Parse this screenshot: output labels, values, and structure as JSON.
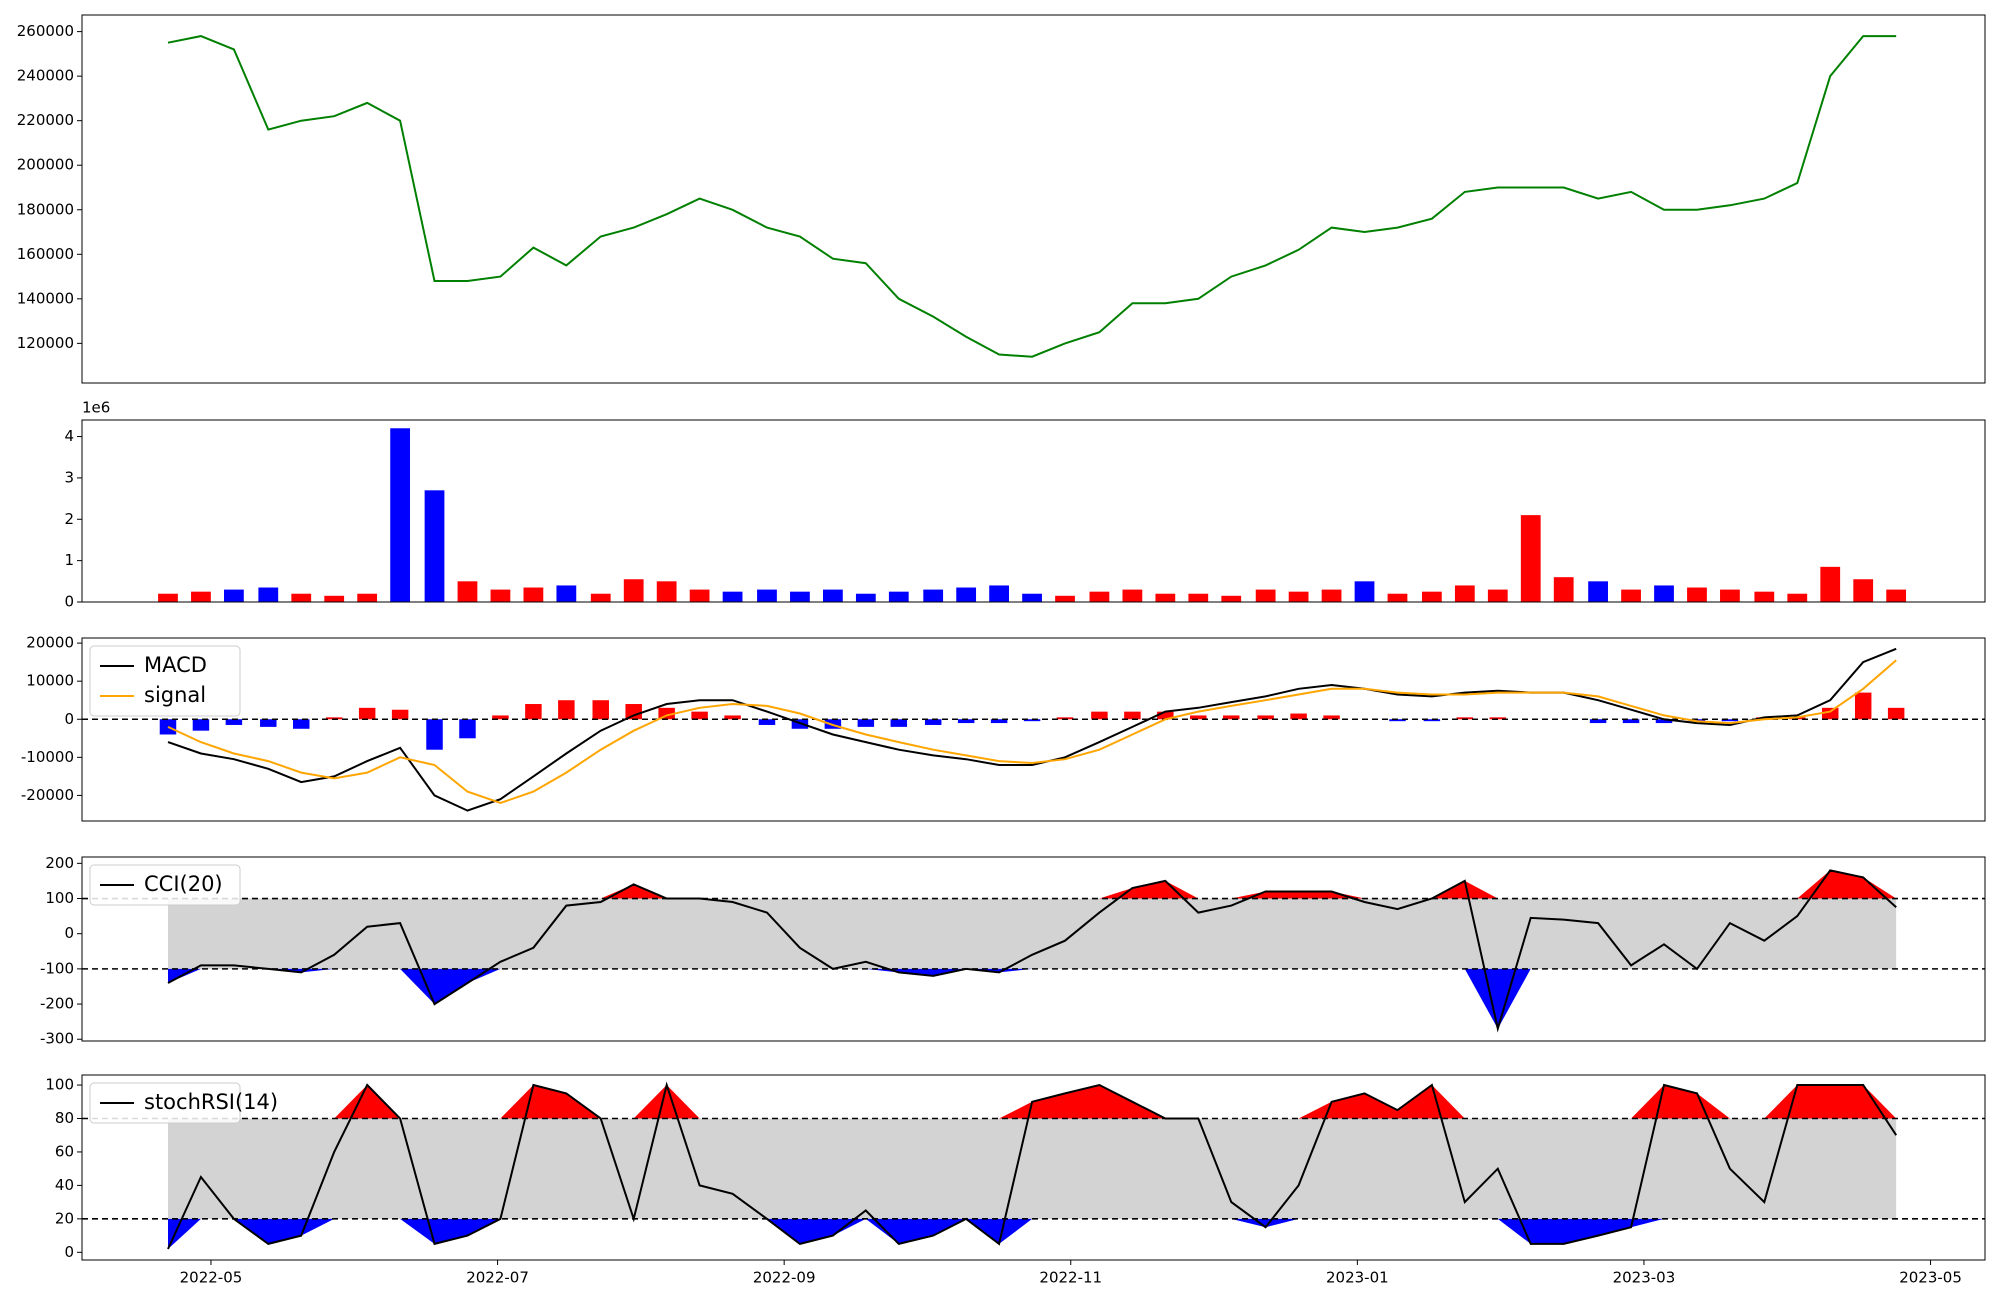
{
  "chart_data": {
    "type": "panels",
    "xlim": [
      -0.9,
      12.38
    ],
    "xticks": [
      {
        "value": 0,
        "label": "2022-05"
      },
      {
        "value": 2,
        "label": "2022-07"
      },
      {
        "value": 4,
        "label": "2022-09"
      },
      {
        "value": 6,
        "label": "2022-11"
      },
      {
        "value": 8,
        "label": "2023-01"
      },
      {
        "value": 10,
        "label": "2023-03"
      },
      {
        "value": 12,
        "label": "2023-05"
      }
    ],
    "x": [
      -0.3,
      -0.07,
      0.16,
      0.4,
      0.63,
      0.86,
      1.09,
      1.32,
      1.56,
      1.79,
      2.02,
      2.25,
      2.48,
      2.72,
      2.95,
      3.18,
      3.41,
      3.64,
      3.88,
      4.11,
      4.34,
      4.57,
      4.8,
      5.04,
      5.27,
      5.5,
      5.73,
      5.96,
      6.2,
      6.43,
      6.66,
      6.89,
      7.12,
      7.36,
      7.59,
      7.82,
      8.05,
      8.28,
      8.52,
      8.75,
      8.98,
      9.21,
      9.44,
      9.68,
      9.91,
      10.14,
      10.37,
      10.6,
      10.84,
      11.07,
      11.3,
      11.53,
      11.76
    ],
    "panels": [
      {
        "type": "line",
        "ylim": [
          102200,
          267460
        ],
        "yticks": [
          120000,
          140000,
          160000,
          180000,
          200000,
          220000,
          240000,
          260000
        ],
        "series": [
          {
            "color": "green",
            "values": [
              255000,
              258000,
              252000,
              216000,
              220000,
              222000,
              228000,
              220000,
              148000,
              148000,
              150000,
              163000,
              155000,
              168000,
              172000,
              178000,
              185000,
              180000,
              172000,
              168000,
              158000,
              156000,
              140000,
              132000,
              123000,
              115000,
              114000,
              120000,
              125000,
              138000,
              138000,
              140000,
              150000,
              155000,
              162000,
              172000,
              170000,
              172000,
              176000,
              188000,
              190000,
              190000,
              190000,
              185000,
              188000,
              180000,
              180000,
              182000,
              185000,
              192000,
              240000,
              258000,
              258000
            ]
          }
        ]
      },
      {
        "type": "bar",
        "offset_label": "1e6",
        "ylim": [
          0,
          4.4
        ],
        "yticks": [
          0,
          1,
          2,
          3,
          4
        ],
        "up_color": "red",
        "down_color": "blue",
        "values": [
          0.2,
          0.25,
          0.3,
          0.35,
          0.2,
          0.15,
          0.2,
          4.2,
          2.7,
          0.5,
          0.3,
          0.35,
          0.4,
          0.2,
          0.55,
          0.5,
          0.3,
          0.25,
          0.3,
          0.25,
          0.3,
          0.2,
          0.25,
          0.3,
          0.35,
          0.4,
          0.2,
          0.15,
          0.25,
          0.3,
          0.2,
          0.2,
          0.15,
          0.3,
          0.25,
          0.3,
          0.5,
          0.2,
          0.25,
          0.4,
          0.3,
          2.1,
          0.6,
          0.5,
          0.3,
          0.4,
          0.35,
          0.3,
          0.25,
          0.2,
          0.85,
          0.55,
          0.3
        ]
      },
      {
        "type": "macd",
        "ylim": [
          -26720,
          21340
        ],
        "yticks": [
          -20000,
          -10000,
          0,
          10000,
          20000
        ],
        "hlines": [
          0
        ],
        "legend": "upper left",
        "series": [
          {
            "name": "MACD",
            "color": "black",
            "values": [
              -6000,
              -9000,
              -10500,
              -13000,
              -16500,
              -15000,
              -11000,
              -7500,
              -20000,
              -24000,
              -21000,
              -15000,
              -9000,
              -3000,
              1000,
              4000,
              5000,
              5000,
              2000,
              -1000,
              -4000,
              -6000,
              -8000,
              -9500,
              -10500,
              -12000,
              -12000,
              -10000,
              -6000,
              -2000,
              2000,
              3000,
              4500,
              6000,
              8000,
              9000,
              8000,
              6500,
              6000,
              7000,
              7500,
              7000,
              7000,
              5000,
              2500,
              0,
              -1000,
              -1500,
              500,
              1000,
              5000,
              15000,
              18500
            ]
          },
          {
            "name": "signal",
            "color": "orange",
            "values": [
              -2000,
              -6000,
              -9000,
              -11000,
              -14000,
              -15500,
              -14000,
              -10000,
              -12000,
              -19000,
              -22000,
              -19000,
              -14000,
              -8000,
              -3000,
              1000,
              3000,
              4000,
              3500,
              1500,
              -1500,
              -4000,
              -6000,
              -8000,
              -9500,
              -11000,
              -11500,
              -10500,
              -8000,
              -4000,
              0,
              2000,
              3500,
              5000,
              6500,
              8000,
              8000,
              7000,
              6500,
              6500,
              7000,
              7000,
              7000,
              6000,
              3500,
              1000,
              -500,
              -1000,
              0,
              500,
              2000,
              8000,
              15500
            ]
          }
        ],
        "histogram": {
          "up_color": "red",
          "down_color": "blue",
          "values": [
            -4000,
            -3000,
            -1500,
            -2000,
            -2500,
            500,
            3000,
            2500,
            -8000,
            -5000,
            1000,
            4000,
            5000,
            5000,
            4000,
            3000,
            2000,
            1000,
            -1500,
            -2500,
            -2500,
            -2000,
            -2000,
            -1500,
            -1000,
            -1000,
            -500,
            500,
            2000,
            2000,
            2000,
            1000,
            1000,
            1000,
            1500,
            1000,
            0,
            -500,
            -500,
            500,
            500,
            0,
            0,
            -1000,
            -1000,
            -1000,
            -500,
            -500,
            500,
            500,
            3000,
            7000,
            3000
          ]
        }
      },
      {
        "type": "band",
        "ylim": [
          -305,
          218
        ],
        "yticks": [
          -300,
          -200,
          -100,
          0,
          100,
          200
        ],
        "upper": 100,
        "lower": -100,
        "band_color": "lightgray",
        "upper_color": "red",
        "lower_color": "blue",
        "legend": "upper left",
        "series": [
          {
            "name": "CCI(20)",
            "color": "black",
            "values": [
              -140,
              -90,
              -90,
              -100,
              -110,
              -60,
              20,
              30,
              -200,
              -140,
              -80,
              -40,
              80,
              90,
              140,
              100,
              100,
              90,
              60,
              -40,
              -100,
              -80,
              -110,
              -120,
              -100,
              -110,
              -60,
              -20,
              60,
              130,
              150,
              60,
              80,
              120,
              120,
              120,
              90,
              70,
              100,
              150,
              -270,
              45,
              40,
              30,
              -90,
              -30,
              -100,
              30,
              -20,
              50,
              180,
              160,
              75
            ]
          }
        ]
      },
      {
        "type": "band",
        "ylim": [
          -4.6,
          106
        ],
        "yticks": [
          0,
          20,
          40,
          60,
          80,
          100
        ],
        "upper": 80,
        "lower": 20,
        "band_color": "lightgray",
        "upper_color": "red",
        "lower_color": "blue",
        "legend": "upper left",
        "series": [
          {
            "name": "stochRSI(14)",
            "color": "black",
            "values": [
              2,
              45,
              20,
              5,
              10,
              60,
              100,
              80,
              5,
              10,
              20,
              100,
              95,
              80,
              20,
              100,
              40,
              35,
              20,
              5,
              10,
              25,
              5,
              10,
              20,
              5,
              90,
              95,
              100,
              90,
              80,
              80,
              30,
              15,
              40,
              90,
              95,
              85,
              100,
              30,
              50,
              5,
              5,
              10,
              15,
              100,
              95,
              50,
              30,
              100,
              100,
              100,
              70
            ]
          }
        ]
      }
    ]
  }
}
